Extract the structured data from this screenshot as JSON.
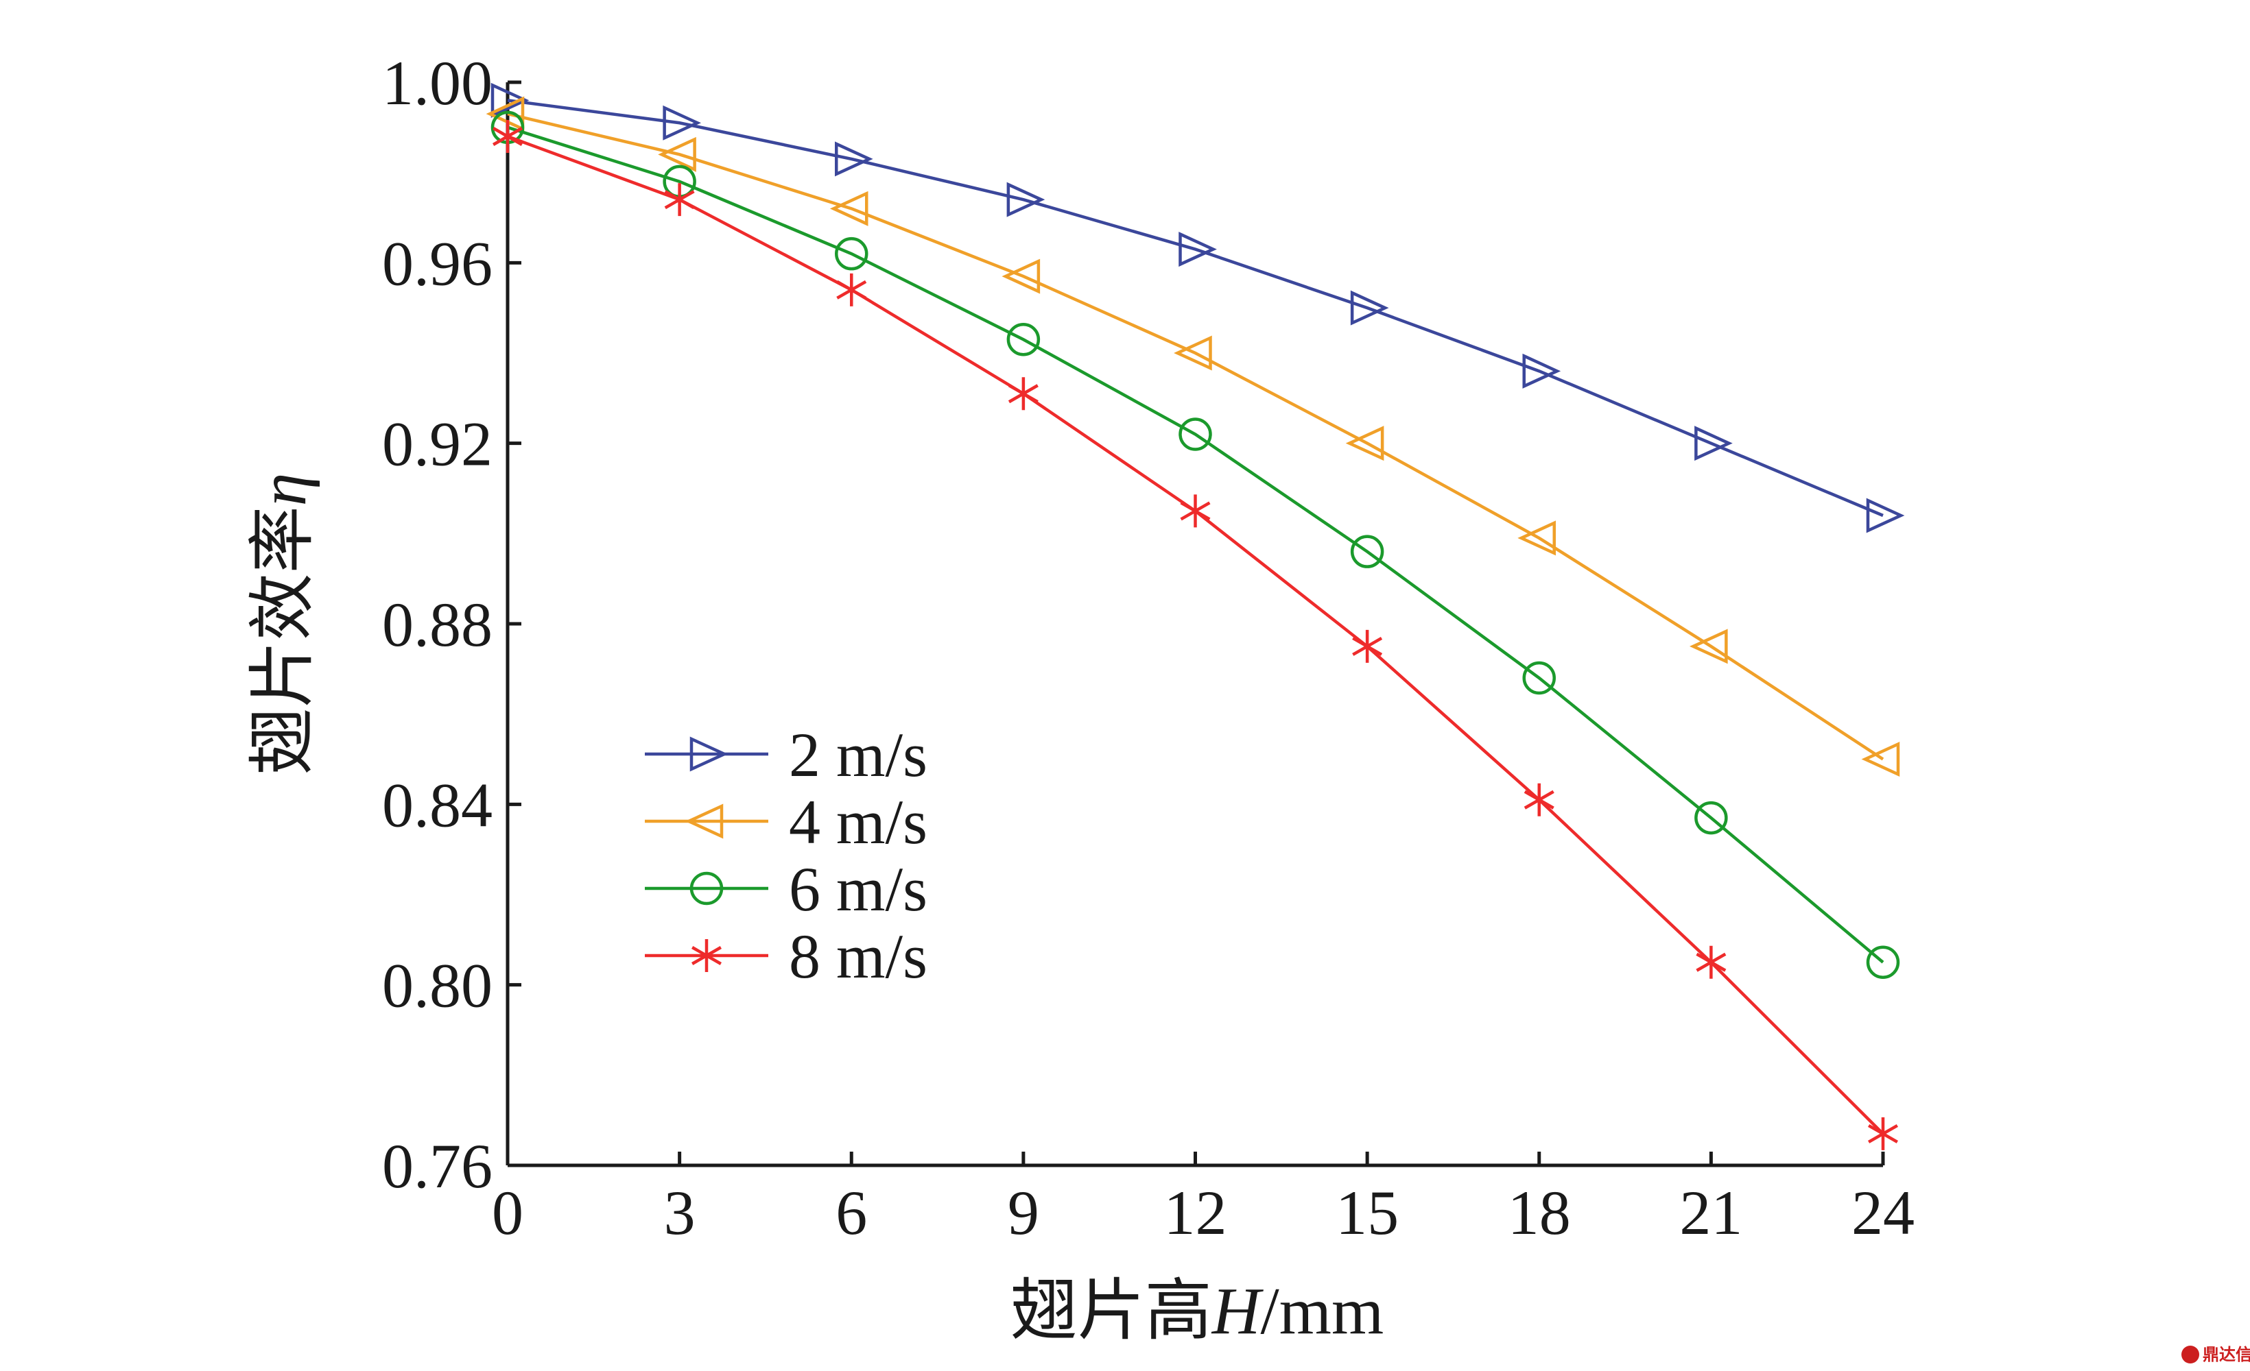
{
  "chart_data": {
    "type": "line",
    "x": [
      0,
      3,
      6,
      9,
      12,
      15,
      18,
      21,
      24
    ],
    "xlim": [
      0,
      24
    ],
    "ylim": [
      0.76,
      1.0
    ],
    "xticks": [
      "0",
      "3",
      "6",
      "9",
      "12",
      "15",
      "18",
      "21",
      "24"
    ],
    "yticks": [
      "0.76",
      "0.80",
      "0.84",
      "0.88",
      "0.92",
      "0.96",
      "1.00"
    ],
    "xlabel": {
      "prefix": "翅片高",
      "var": "H",
      "unit": "/mm"
    },
    "ylabel": {
      "prefix": "翅片效率",
      "var": "η"
    },
    "grid": false,
    "legend_position": "center-left",
    "series": [
      {
        "name": "2 m/s",
        "marker": "triangle-right",
        "color": "#3b479b",
        "values": [
          0.996,
          0.991,
          0.983,
          0.974,
          0.963,
          0.95,
          0.936,
          0.92,
          0.904
        ]
      },
      {
        "name": "4 m/s",
        "marker": "triangle-left",
        "color": "#f0a029",
        "values": [
          0.993,
          0.984,
          0.972,
          0.957,
          0.94,
          0.92,
          0.899,
          0.875,
          0.85
        ]
      },
      {
        "name": "6 m/s",
        "marker": "circle",
        "color": "#1b9a2c",
        "values": [
          0.99,
          0.978,
          0.962,
          0.943,
          0.922,
          0.896,
          0.868,
          0.837,
          0.805
        ]
      },
      {
        "name": "8 m/s",
        "marker": "asterisk",
        "color": "#ee2b2b",
        "values": [
          0.988,
          0.974,
          0.954,
          0.931,
          0.905,
          0.875,
          0.841,
          0.805,
          0.767
        ]
      }
    ]
  },
  "watermark": {
    "text": "鼎达信",
    "color": "#cc1f1f"
  }
}
